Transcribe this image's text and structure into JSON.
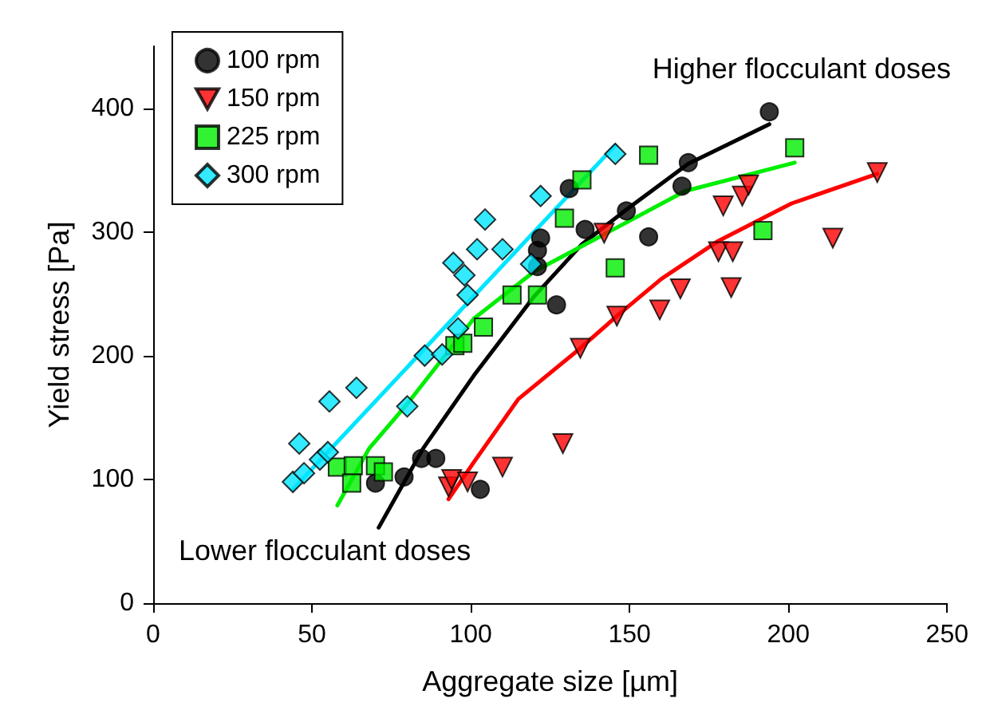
{
  "chart_data": {
    "type": "scatter",
    "xlabel": "Aggregate size [µm]",
    "ylabel": "Yield stress [Pa]",
    "xlim": [
      0,
      250
    ],
    "xticks": [
      0,
      50,
      100,
      150,
      200,
      250
    ],
    "ylim": [
      0,
      450
    ],
    "yticks": [
      0,
      100,
      200,
      300,
      400
    ],
    "grid": false,
    "legend": "top left",
    "annotations": [
      "Higher flocculant doses",
      "Lower flocculant doses"
    ],
    "series": [
      {
        "name": "100 rpm",
        "marker": "circle",
        "color": "#000000",
        "x": [
          70,
          79,
          84.5,
          89,
          103,
          122,
          121,
          121,
          127,
          131,
          136,
          149,
          156,
          166.5,
          168.5,
          194
        ],
        "values": [
          97,
          102,
          117,
          117,
          92,
          295,
          285,
          272,
          241,
          335,
          302,
          317,
          296,
          337,
          356,
          397
        ]
      },
      {
        "name": "150 rpm",
        "marker": "triangle",
        "color": "#ff0000",
        "x": [
          93,
          94,
          99,
          110,
          129,
          134.5,
          146,
          159.5,
          166,
          182,
          178,
          182.5,
          179.5,
          185.5,
          187.5,
          142,
          214,
          228
        ],
        "values": [
          94,
          100,
          98,
          110,
          129,
          206,
          232,
          237,
          254,
          255,
          284,
          284,
          321,
          329,
          338,
          299,
          295,
          348
        ]
      },
      {
        "name": "225 rpm",
        "marker": "square",
        "color": "#00ee00",
        "x": [
          58,
          63,
          62.5,
          70,
          72.5,
          95,
          97.5,
          104,
          113,
          121,
          129.5,
          135,
          145.5,
          156,
          192,
          202
        ],
        "values": [
          110,
          111,
          97,
          111,
          106,
          208,
          210,
          223,
          249,
          249,
          311,
          342,
          271,
          362,
          301,
          368
        ]
      },
      {
        "name": "300 rpm",
        "marker": "diamond",
        "color": "#00e5ff",
        "x": [
          44,
          47.5,
          52.5,
          55,
          46,
          55.5,
          64,
          80,
          85.5,
          91,
          96,
          99,
          98,
          94.5,
          102,
          110,
          104.5,
          119,
          122,
          145.5
        ],
        "values": [
          98,
          105,
          116,
          122,
          129,
          163,
          174,
          159,
          200,
          201,
          222,
          249,
          265,
          275,
          286,
          286,
          310,
          274,
          329,
          363
        ]
      },
      {
        "type": "line",
        "marker": "none",
        "color": "#000000",
        "x": [
          71,
          85,
          101,
          120,
          135,
          149,
          168.5,
          194
        ],
        "values": [
          61,
          125,
          184,
          248,
          290,
          318,
          355,
          387
        ]
      },
      {
        "type": "line",
        "marker": "none",
        "color": "#ff0000",
        "x": [
          93,
          101,
          115,
          134.5,
          146,
          160,
          177.5,
          201,
          228
        ],
        "values": [
          84,
          114,
          165,
          206,
          232,
          262,
          292,
          323,
          347
        ]
      },
      {
        "type": "line",
        "marker": "none",
        "color": "#00ee00",
        "x": [
          58,
          68,
          80,
          101,
          120,
          142,
          167.5,
          202
        ],
        "values": [
          79,
          125,
          161,
          230,
          268,
          298,
          333,
          356
        ]
      },
      {
        "type": "line",
        "marker": "none",
        "color": "#00e5ff",
        "x": [
          44,
          145.5
        ],
        "values": [
          92,
          370
        ]
      }
    ]
  }
}
